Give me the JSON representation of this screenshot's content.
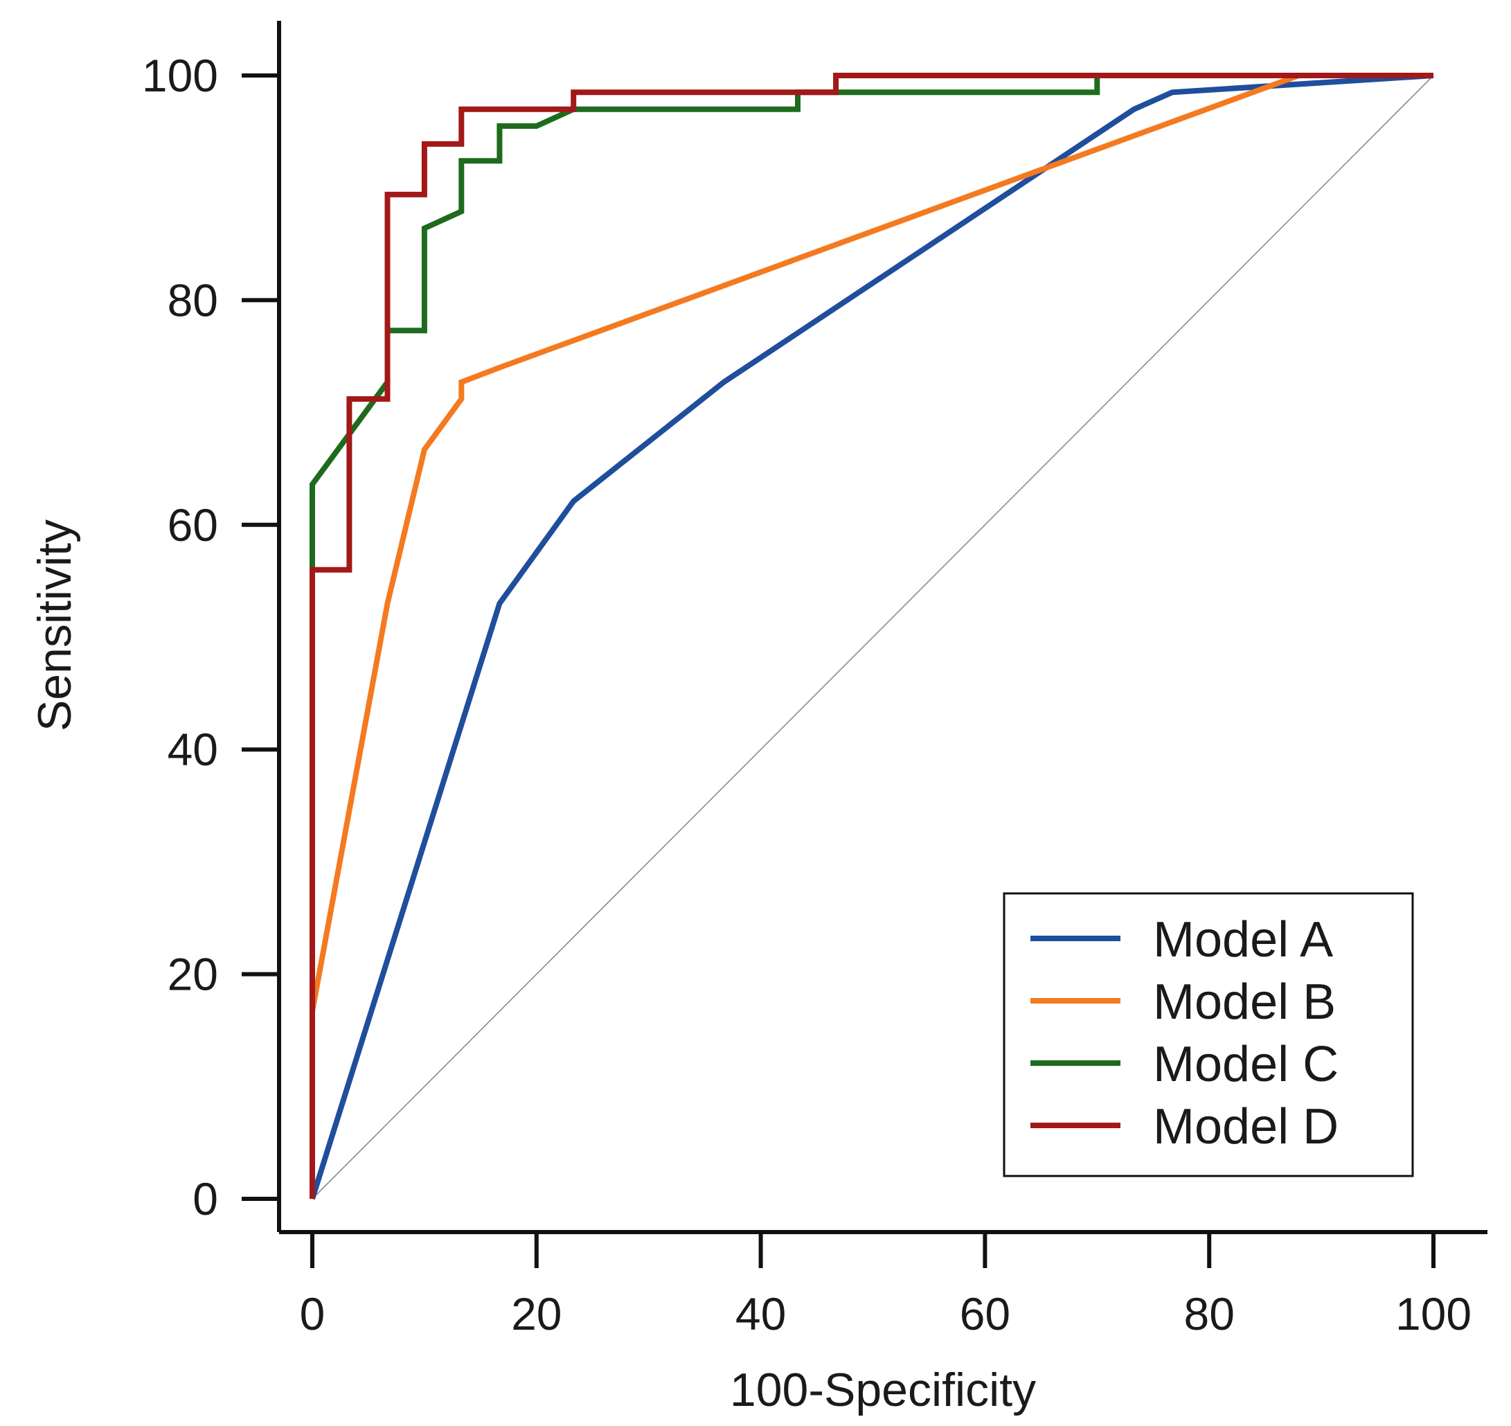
{
  "chart_data": {
    "type": "line",
    "title": "",
    "xlabel": "100-Specificity",
    "ylabel": "Sensitivity",
    "xlim": [
      0,
      100
    ],
    "ylim": [
      0,
      100
    ],
    "xticks": [
      0,
      20,
      40,
      60,
      80,
      100
    ],
    "yticks": [
      0,
      20,
      40,
      60,
      80,
      100
    ],
    "grid": false,
    "legend_position": "bottom-right",
    "reference_line": {
      "x": [
        0,
        100
      ],
      "y": [
        0,
        100
      ],
      "color": "#8c8c8c"
    },
    "series": [
      {
        "name": "Model A",
        "color": "#1f4e9c",
        "x": [
          0,
          16.7,
          23.3,
          36.7,
          73.3,
          76.7,
          100
        ],
        "y": [
          0,
          53,
          62.1,
          72.7,
          97,
          98.5,
          100
        ]
      },
      {
        "name": "Model B",
        "color": "#f47a20",
        "x": [
          0,
          0,
          6.7,
          10,
          13.3,
          13.3,
          16.7,
          88,
          100
        ],
        "y": [
          0,
          16.7,
          53,
          66.7,
          71.2,
          72.7,
          74,
          100,
          100
        ]
      },
      {
        "name": "Model C",
        "color": "#1e6b1e",
        "x": [
          0,
          0,
          0,
          6.7,
          6.7,
          10,
          10,
          13.3,
          13.3,
          16.7,
          16.7,
          20,
          23.3,
          43.3,
          43.3,
          70,
          70,
          100
        ],
        "y": [
          0,
          56,
          63.6,
          72.7,
          77.3,
          77.3,
          86.4,
          87.9,
          92.4,
          92.4,
          95.5,
          95.5,
          97,
          97,
          98.5,
          98.5,
          100,
          100
        ]
      },
      {
        "name": "Model D",
        "color": "#a31818",
        "x": [
          0,
          0,
          3.3,
          3.3,
          6.7,
          6.7,
          10,
          10,
          13.3,
          13.3,
          23.3,
          23.3,
          46.7,
          46.7,
          100
        ],
        "y": [
          0,
          56,
          56,
          71.2,
          71.2,
          89.4,
          89.4,
          93.9,
          93.9,
          97,
          97,
          98.5,
          98.5,
          100,
          100
        ]
      }
    ]
  }
}
